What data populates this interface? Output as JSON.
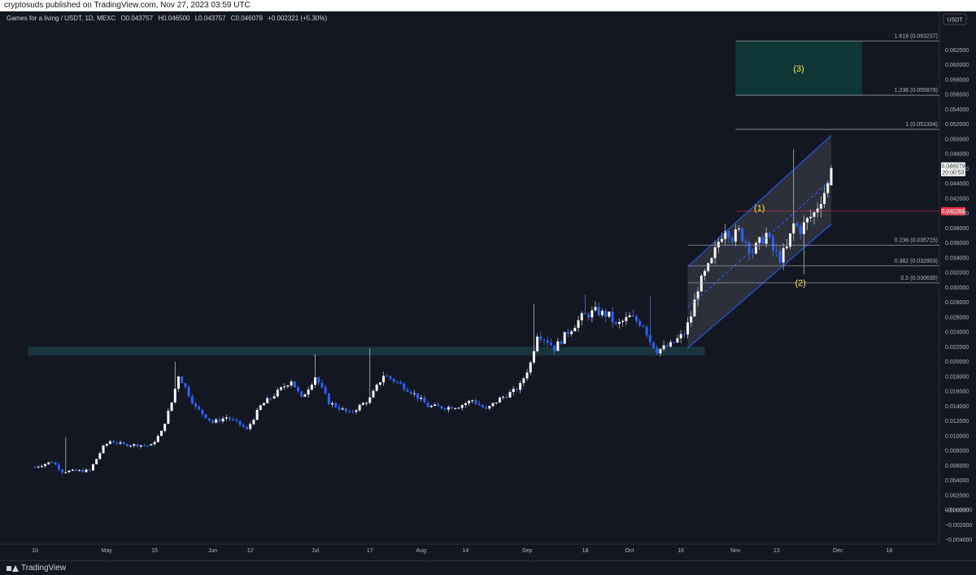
{
  "header": {
    "publish_line": "cryptosuds published on TradingView.com, Nov 27, 2023 03:59 UTC"
  },
  "legend": {
    "symbol": "Games for a living / USDT, 1D, MEXC",
    "open": "O0.043757",
    "high": "H0.046500",
    "low": "L0.043757",
    "close": "C0.046079",
    "change": "+0.002321 (+5.30%)"
  },
  "footer": {
    "brand": "TradingView"
  },
  "chart_data": {
    "type": "candlestick",
    "currency_label": "USDT",
    "ylim": [
      -0.0046,
      0.0672
    ],
    "y_ticks": [
      "0.062000",
      "0.060000",
      "0.058000",
      "0.056000",
      "0.054000",
      "0.052000",
      "0.050000",
      "0.048000",
      "0.046000",
      "0.044000",
      "0.042000",
      "0.040000",
      "0.038000",
      "0.036000",
      "0.034000",
      "0.032000",
      "0.030000",
      "0.028000",
      "0.026000",
      "0.024000",
      "0.022000",
      "0.020000",
      "0.018000",
      "0.016000",
      "0.014000",
      "0.012000",
      "0.010000",
      "0.008000",
      "0.006000",
      "0.004000",
      "0.002000",
      "0.000000",
      "−0.000000",
      "−0.002000",
      "−0.004000"
    ],
    "x_range_days": [
      0,
      233
    ],
    "x_ticks": [
      {
        "label": "10",
        "day": 0
      },
      {
        "label": "May",
        "day": 21
      },
      {
        "label": "15",
        "day": 35
      },
      {
        "label": "Jun",
        "day": 52
      },
      {
        "label": "12",
        "day": 63
      },
      {
        "label": "Jul",
        "day": 82
      },
      {
        "label": "17",
        "day": 98
      },
      {
        "label": "Aug",
        "day": 113
      },
      {
        "label": "14",
        "day": 126
      },
      {
        "label": "Sep",
        "day": 144
      },
      {
        "label": "18",
        "day": 161
      },
      {
        "label": "Oct",
        "day": 174
      },
      {
        "label": "16",
        "day": 189
      },
      {
        "label": "Nov",
        "day": 205
      },
      {
        "label": "13",
        "day": 217
      },
      {
        "label": "Dec",
        "day": 235
      },
      {
        "label": "18",
        "day": 250
      }
    ],
    "price_path": [
      {
        "day": 0,
        "price": 0.0058
      },
      {
        "day": 5,
        "price": 0.0065
      },
      {
        "day": 8,
        "price": 0.0052
      },
      {
        "day": 16,
        "price": 0.0053
      },
      {
        "day": 20,
        "price": 0.0085
      },
      {
        "day": 22,
        "price": 0.0093
      },
      {
        "day": 26,
        "price": 0.0088
      },
      {
        "day": 34,
        "price": 0.0087
      },
      {
        "day": 37,
        "price": 0.0105
      },
      {
        "day": 40,
        "price": 0.0145
      },
      {
        "day": 42,
        "price": 0.0182
      },
      {
        "day": 44,
        "price": 0.0165
      },
      {
        "day": 47,
        "price": 0.0138
      },
      {
        "day": 52,
        "price": 0.0118
      },
      {
        "day": 56,
        "price": 0.0125
      },
      {
        "day": 60,
        "price": 0.0115
      },
      {
        "day": 62,
        "price": 0.0108
      },
      {
        "day": 66,
        "price": 0.014
      },
      {
        "day": 70,
        "price": 0.0155
      },
      {
        "day": 75,
        "price": 0.0175
      },
      {
        "day": 78,
        "price": 0.015
      },
      {
        "day": 82,
        "price": 0.018
      },
      {
        "day": 86,
        "price": 0.0145
      },
      {
        "day": 92,
        "price": 0.013
      },
      {
        "day": 98,
        "price": 0.015
      },
      {
        "day": 102,
        "price": 0.0182
      },
      {
        "day": 106,
        "price": 0.0172
      },
      {
        "day": 110,
        "price": 0.016
      },
      {
        "day": 115,
        "price": 0.014
      },
      {
        "day": 120,
        "price": 0.0138
      },
      {
        "day": 124,
        "price": 0.014
      },
      {
        "day": 128,
        "price": 0.0148
      },
      {
        "day": 132,
        "price": 0.0135
      },
      {
        "day": 136,
        "price": 0.015
      },
      {
        "day": 140,
        "price": 0.016
      },
      {
        "day": 142,
        "price": 0.0168
      },
      {
        "day": 145,
        "price": 0.0198
      },
      {
        "day": 147,
        "price": 0.0238
      },
      {
        "day": 150,
        "price": 0.0228
      },
      {
        "day": 152,
        "price": 0.0218
      },
      {
        "day": 156,
        "price": 0.024
      },
      {
        "day": 160,
        "price": 0.026
      },
      {
        "day": 164,
        "price": 0.0268
      },
      {
        "day": 168,
        "price": 0.0262
      },
      {
        "day": 170,
        "price": 0.0248
      },
      {
        "day": 174,
        "price": 0.026
      },
      {
        "day": 178,
        "price": 0.025
      },
      {
        "day": 180,
        "price": 0.0228
      },
      {
        "day": 182,
        "price": 0.0215
      },
      {
        "day": 186,
        "price": 0.0222
      },
      {
        "day": 190,
        "price": 0.0238
      },
      {
        "day": 192,
        "price": 0.0262
      },
      {
        "day": 194,
        "price": 0.03
      },
      {
        "day": 196,
        "price": 0.0318
      },
      {
        "day": 198,
        "price": 0.0335
      },
      {
        "day": 200,
        "price": 0.0362
      },
      {
        "day": 202,
        "price": 0.0382
      },
      {
        "day": 204,
        "price": 0.0368
      },
      {
        "day": 206,
        "price": 0.0375
      },
      {
        "day": 208,
        "price": 0.0362
      },
      {
        "day": 210,
        "price": 0.0348
      },
      {
        "day": 212,
        "price": 0.036
      },
      {
        "day": 214,
        "price": 0.0372
      },
      {
        "day": 216,
        "price": 0.035
      },
      {
        "day": 218,
        "price": 0.034
      },
      {
        "day": 220,
        "price": 0.0352
      },
      {
        "day": 222,
        "price": 0.0385
      },
      {
        "day": 224,
        "price": 0.0378
      },
      {
        "day": 226,
        "price": 0.039
      },
      {
        "day": 228,
        "price": 0.04
      },
      {
        "day": 230,
        "price": 0.042
      },
      {
        "day": 232,
        "price": 0.0438
      },
      {
        "day": 233,
        "price": 0.0461
      }
    ],
    "wick_spikes": [
      {
        "day": 9,
        "high": 0.0098
      },
      {
        "day": 41,
        "high": 0.02
      },
      {
        "day": 82,
        "high": 0.021
      },
      {
        "day": 98,
        "high": 0.0218
      },
      {
        "day": 146,
        "high": 0.0278
      },
      {
        "day": 161,
        "high": 0.029
      },
      {
        "day": 180,
        "high": 0.0288
      },
      {
        "day": 222,
        "high": 0.0486
      },
      {
        "day": 225,
        "low": 0.0318
      }
    ],
    "support_zone": {
      "day_start": -2,
      "day_end": 196,
      "low": 0.0208,
      "high": 0.022
    },
    "target_zone": {
      "day_start": 205,
      "day_end": 242,
      "low": 0.0559,
      "high": 0.0632,
      "label": "(3)"
    },
    "current_price": {
      "value": "0.046079",
      "countdown": "20:00:53"
    },
    "marker_line": {
      "value": "0.040266",
      "day_start": 205
    },
    "fibonacci": [
      {
        "level": "1.618 (0.063237)",
        "value": 0.0632,
        "day_start": 205
      },
      {
        "level": "1.236 (0.055879)",
        "value": 0.0559,
        "day_start": 205
      },
      {
        "level": "1 (0.051334)",
        "value": 0.0513,
        "day_start": 205
      },
      {
        "level": "0.236 (0.035715)",
        "value": 0.0357,
        "day_start": 191
      },
      {
        "level": "0.382 (0.032903)",
        "value": 0.0329,
        "day_start": 191
      },
      {
        "level": "0.5 (0.030630)",
        "value": 0.0306,
        "day_start": 191
      }
    ],
    "channel": {
      "day_start": 191,
      "day_end": 233,
      "upper_start": 0.0328,
      "upper_end": 0.0505,
      "lower_start": 0.0218,
      "lower_end": 0.0385
    },
    "wave_labels": [
      {
        "label": "(1)",
        "day": 212,
        "price": 0.0403
      },
      {
        "label": "(2)",
        "day": 224,
        "price": 0.0302
      }
    ]
  }
}
